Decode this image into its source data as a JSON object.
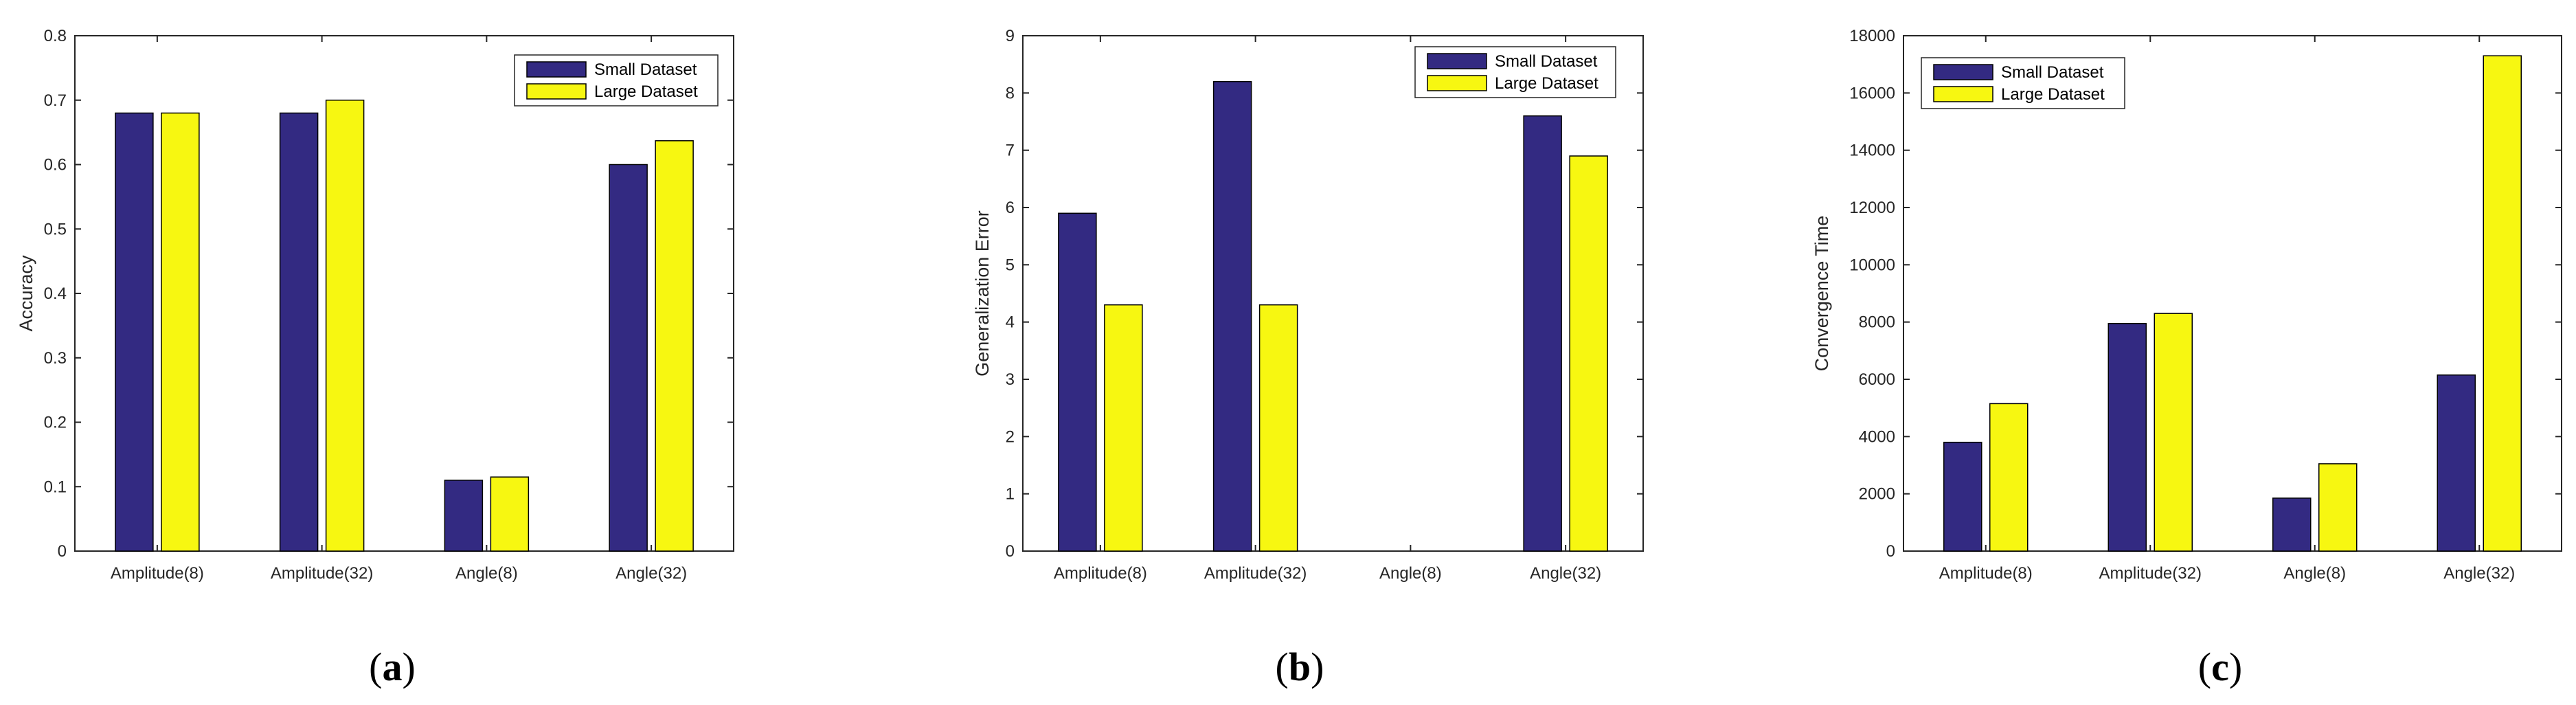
{
  "colors": {
    "small": "#332a82",
    "large": "#f7f711"
  },
  "chart_data": [
    {
      "type": "bar",
      "panel_label": "(a)",
      "panel_letter": "a",
      "categories": [
        "Amplitude(8)",
        "Amplitude(32)",
        "Angle(8)",
        "Angle(32)"
      ],
      "series": [
        {
          "name": "Small Dataset",
          "values": [
            0.68,
            0.68,
            0.11,
            0.6
          ]
        },
        {
          "name": "Large Dataset",
          "values": [
            0.68,
            0.7,
            0.115,
            0.637
          ]
        }
      ],
      "title": "",
      "xlabel": "",
      "ylabel": "Accuracy",
      "ylim": [
        0,
        0.8
      ],
      "yticks": [
        "0",
        "0.1",
        "0.2",
        "0.3",
        "0.4",
        "0.5",
        "0.6",
        "0.7",
        "0.8"
      ],
      "grid": false,
      "legend_position": "top-right"
    },
    {
      "type": "bar",
      "panel_label": "(b)",
      "panel_letter": "b",
      "categories": [
        "Amplitude(8)",
        "Amplitude(32)",
        "Angle(8)",
        "Angle(32)"
      ],
      "series": [
        {
          "name": "Small Dataset",
          "values": [
            5.9,
            8.2,
            0,
            7.6
          ]
        },
        {
          "name": "Large Dataset",
          "values": [
            4.3,
            4.3,
            0,
            6.9
          ]
        }
      ],
      "title": "",
      "xlabel": "",
      "ylabel": "Generalization Error",
      "ylim": [
        0,
        9
      ],
      "yticks": [
        "0",
        "1",
        "2",
        "3",
        "4",
        "5",
        "6",
        "7",
        "8",
        "9"
      ],
      "grid": false,
      "legend_position": "top-right"
    },
    {
      "type": "bar",
      "panel_label": "(c)",
      "panel_letter": "c",
      "categories": [
        "Amplitude(8)",
        "Amplitude(32)",
        "Angle(8)",
        "Angle(32)"
      ],
      "series": [
        {
          "name": "Small Dataset",
          "values": [
            3800,
            7950,
            1850,
            6150
          ]
        },
        {
          "name": "Large Dataset",
          "values": [
            5150,
            8300,
            3050,
            17300
          ]
        }
      ],
      "title": "",
      "xlabel": "",
      "ylabel": "Convergence Time",
      "ylim": [
        0,
        18000
      ],
      "yticks": [
        "0",
        "2000",
        "4000",
        "6000",
        "8000",
        "10000",
        "12000",
        "14000",
        "16000",
        "18000"
      ],
      "grid": false,
      "legend_position": "top-left"
    }
  ]
}
